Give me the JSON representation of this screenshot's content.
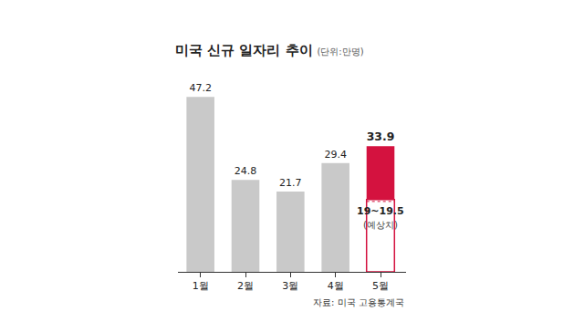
{
  "chart_data": {
    "type": "bar",
    "title": "미국 신규 일자리 추이",
    "subtitle": "(단위:만명)",
    "categories": [
      "1월",
      "2월",
      "3월",
      "4월",
      "5월"
    ],
    "values": [
      47.2,
      24.8,
      21.7,
      29.4,
      33.9
    ],
    "colors": [
      "#c9c9c9",
      "#c9c9c9",
      "#c9c9c9",
      "#c9c9c9",
      "#d4123f"
    ],
    "data_labels": true,
    "tick_labels": "x",
    "grid": false,
    "ylim": [
      0,
      50
    ],
    "expected": {
      "category": "5월",
      "low": 19,
      "high": 19.5,
      "label": "19~19.5",
      "note": "(예상치)"
    },
    "source": "자료: 미국 고용통계국"
  }
}
